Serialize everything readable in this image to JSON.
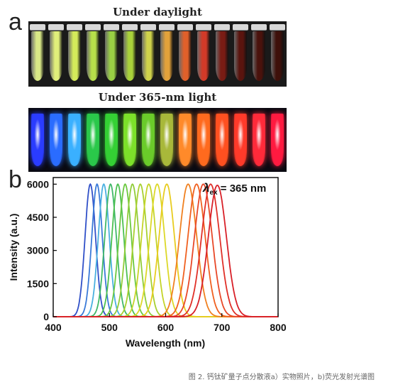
{
  "panel_a": {
    "letter": "a",
    "daylight_title": "Under daylight",
    "uv_title": "Under 365-nm light",
    "daylight_colors": [
      "#d9e886",
      "#e0ee7a",
      "#d4ea5a",
      "#b7e04a",
      "#9ad044",
      "#a9d23a",
      "#cfd24a",
      "#e3a23a",
      "#e0602a",
      "#d23a28",
      "#7a1c14",
      "#5a140e",
      "#4a120c",
      "#3e100a"
    ],
    "uv_colors": [
      "#2a3cff",
      "#2a6cff",
      "#3ab0ff",
      "#2ac84a",
      "#34d034",
      "#7ce02a",
      "#6acb2a",
      "#a8b83a",
      "#ff8a2a",
      "#ff6a1e",
      "#ff5020",
      "#ff3a2a",
      "#ff2a3a",
      "#ff1a40"
    ]
  },
  "panel_b": {
    "letter": "b",
    "annotation_lambda": "λ",
    "annotation_sub": "ex",
    "annotation_value": " = 365 nm"
  },
  "chart_data": {
    "type": "line",
    "xlabel": "Wavelength (nm)",
    "ylabel": "Intensity (a.u.)",
    "xlim": [
      400,
      800
    ],
    "ylim": [
      0,
      6300
    ],
    "xticks": [
      400,
      500,
      600,
      700,
      800
    ],
    "yticks": [
      0,
      1500,
      3000,
      4500,
      6000
    ],
    "grid": false,
    "series": [
      {
        "peak": 466,
        "fwhm": 22,
        "height": 6000,
        "color": "#3050c8"
      },
      {
        "peak": 478,
        "fwhm": 22,
        "height": 6000,
        "color": "#3a7ad8"
      },
      {
        "peak": 490,
        "fwhm": 23,
        "height": 6000,
        "color": "#4ab0e0"
      },
      {
        "peak": 502,
        "fwhm": 24,
        "height": 6000,
        "color": "#40b868"
      },
      {
        "peak": 515,
        "fwhm": 25,
        "height": 6000,
        "color": "#4cc050"
      },
      {
        "peak": 528,
        "fwhm": 26,
        "height": 6000,
        "color": "#6cc840"
      },
      {
        "peak": 541,
        "fwhm": 27,
        "height": 6000,
        "color": "#90cc38"
      },
      {
        "peak": 555,
        "fwhm": 28,
        "height": 6000,
        "color": "#a8d030"
      },
      {
        "peak": 570,
        "fwhm": 30,
        "height": 6000,
        "color": "#c4d428"
      },
      {
        "peak": 585,
        "fwhm": 31,
        "height": 6000,
        "color": "#dcd828"
      },
      {
        "peak": 602,
        "fwhm": 32,
        "height": 6000,
        "color": "#e8cc20"
      },
      {
        "peak": 640,
        "fwhm": 36,
        "height": 6000,
        "color": "#f08020"
      },
      {
        "peak": 655,
        "fwhm": 36,
        "height": 6000,
        "color": "#f06020"
      },
      {
        "peak": 667,
        "fwhm": 37,
        "height": 6000,
        "color": "#e84828"
      },
      {
        "peak": 680,
        "fwhm": 38,
        "height": 6000,
        "color": "#e03028"
      },
      {
        "peak": 692,
        "fwhm": 38,
        "height": 5950,
        "color": "#d82028"
      }
    ]
  },
  "caption": "图 2. 钙钛矿量子点分散液a）实物照片，b)荧光发射光谱图"
}
